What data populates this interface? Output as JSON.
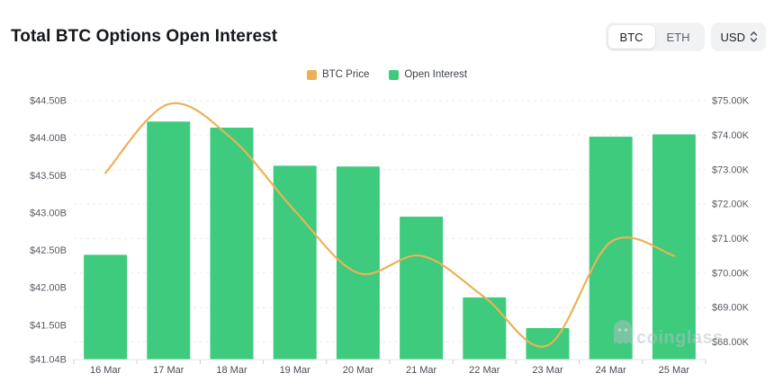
{
  "header": {
    "title": "Total BTC Options Open Interest",
    "asset_toggle": {
      "options": [
        "BTC",
        "ETH"
      ],
      "selected": "BTC"
    },
    "currency_selector": {
      "value": "USD"
    }
  },
  "legend": {
    "items": [
      {
        "label": "BTC Price",
        "color": "#eab158"
      },
      {
        "label": "Open Interest",
        "color": "#3ecb7d"
      }
    ]
  },
  "watermark": {
    "text": "coinglass"
  },
  "chart_data": {
    "type": "combo",
    "title": "Total BTC Options Open Interest",
    "categories": [
      "16 Mar",
      "17 Mar",
      "18 Mar",
      "19 Mar",
      "20 Mar",
      "21 Mar",
      "22 Mar",
      "23 Mar",
      "24 Mar",
      "25 Mar"
    ],
    "series": [
      {
        "name": "Open Interest",
        "type": "bar",
        "axis": "left",
        "color": "#3ecb7d",
        "unit": "billion USD",
        "values": [
          42.44,
          44.22,
          44.14,
          43.63,
          43.62,
          42.95,
          41.87,
          41.46,
          44.02,
          44.05
        ]
      },
      {
        "name": "BTC Price",
        "type": "line",
        "axis": "right",
        "color": "#e9b356",
        "unit": "thousand USD",
        "values": [
          72.9,
          74.9,
          73.9,
          71.8,
          70.0,
          70.5,
          69.3,
          67.9,
          70.9,
          70.5
        ]
      }
    ],
    "left_axis": {
      "tick_labels": [
        "$44.50B",
        "$44.00B",
        "$43.50B",
        "$43.00B",
        "$42.50B",
        "$42.00B",
        "$41.50B",
        "$41.04B"
      ],
      "tick_values": [
        44.5,
        44.0,
        43.5,
        43.0,
        42.5,
        42.0,
        41.5,
        41.04
      ],
      "min": 41.04,
      "max": 44.5
    },
    "right_axis": {
      "tick_labels": [
        "$75.00K",
        "$74.00K",
        "$73.00K",
        "$72.00K",
        "$71.00K",
        "$70.00K",
        "$69.00K",
        "$68.00K"
      ],
      "tick_values": [
        75,
        74,
        73,
        72,
        71,
        70,
        69,
        68
      ],
      "max": 75,
      "min_gridline": 68
    },
    "grid": "horizontal-dashed",
    "legend_position": "top-center"
  }
}
